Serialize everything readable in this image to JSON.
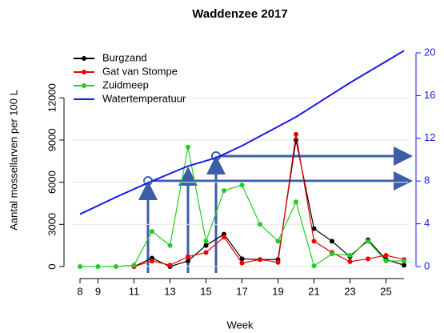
{
  "chart_data": {
    "type": "line",
    "title": "Waddenzee 2017",
    "x_label": "Week",
    "y_label": "Aantal mossellarven per 100 L",
    "xlim": [
      8,
      26
    ],
    "xticks": [
      8,
      9,
      11,
      13,
      15,
      17,
      19,
      21,
      23,
      25
    ],
    "ylim": [
      0,
      15200
    ],
    "yticks": [
      0,
      3000,
      6000,
      9000,
      12000
    ],
    "y2lim": [
      0,
      20
    ],
    "y2ticks": [
      0,
      4,
      8,
      12,
      16,
      20
    ],
    "grid": true,
    "legend": "top-left",
    "x": [
      8,
      9,
      10,
      11,
      12,
      13,
      14,
      15,
      16,
      17,
      18,
      19,
      20,
      21,
      22,
      23,
      24,
      25,
      26
    ],
    "series": [
      {
        "name": "Burgzand",
        "color": "#000000",
        "values": [
          null,
          null,
          null,
          0,
          600,
          0,
          400,
          1500,
          2300,
          550,
          500,
          500,
          9000,
          2700,
          1800,
          700,
          1900,
          500,
          100
        ]
      },
      {
        "name": "Gat van Stompe",
        "color": "#ee0000",
        "values": [
          null,
          null,
          null,
          0,
          400,
          100,
          700,
          1000,
          2100,
          250,
          500,
          300,
          9400,
          1800,
          1000,
          350,
          550,
          800,
          500
        ]
      },
      {
        "name": "Zuidmeep",
        "color": "#22cc22",
        "values": [
          0,
          0,
          0,
          100,
          2500,
          1500,
          8500,
          1800,
          5400,
          5800,
          3000,
          1800,
          4600,
          50,
          900,
          800,
          1800,
          400,
          400
        ]
      },
      {
        "name": "Watertemperatuur",
        "color": "#1a1aee",
        "axis": "y2",
        "x": [
          8,
          10,
          12,
          14,
          15.6,
          17,
          20,
          23,
          26
        ],
        "values": [
          4.9,
          6.5,
          8,
          9.4,
          10.2,
          11.3,
          14,
          17.2,
          20.2
        ]
      }
    ]
  }
}
